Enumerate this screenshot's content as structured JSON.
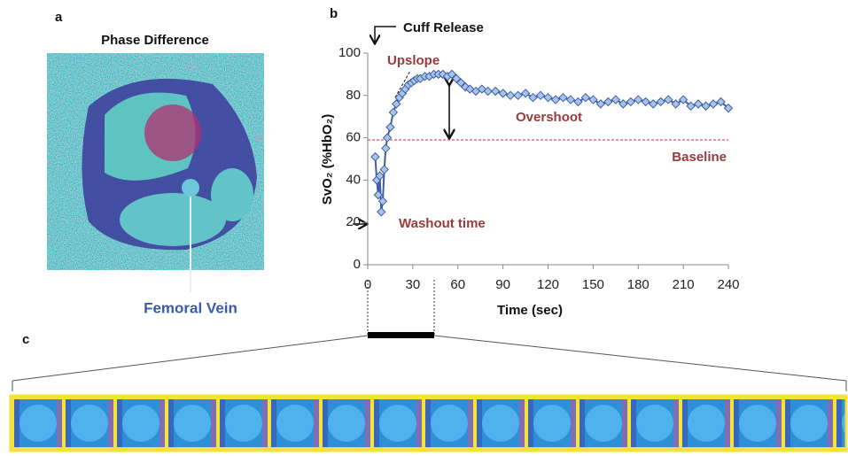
{
  "panel_labels": [
    "a",
    "b",
    "c"
  ],
  "image_title": "Phase Difference",
  "image_label": "Femoral Vein",
  "chart_data": {
    "type": "line",
    "xlabel": "Time (sec)",
    "ylabel": "SvO₂ (%HbO₂)",
    "x": [
      5,
      6,
      7,
      8,
      9,
      10,
      11,
      12,
      13,
      15,
      17,
      19,
      21,
      23,
      25,
      27,
      29,
      31,
      33,
      35,
      38,
      41,
      44,
      47,
      50,
      53,
      56,
      59,
      62,
      65,
      68,
      72,
      76,
      80,
      85,
      90,
      95,
      100,
      105,
      110,
      115,
      120,
      125,
      130,
      135,
      140,
      145,
      150,
      155,
      160,
      165,
      170,
      175,
      180,
      185,
      190,
      195,
      200,
      205,
      210,
      215,
      220,
      225,
      230,
      235,
      240
    ],
    "series": [
      {
        "color": "#3d5fa8",
        "marker_fill": "#a9c4e6",
        "values": [
          51,
          40,
          33,
          42,
          25,
          30,
          45,
          55,
          60,
          65,
          72,
          76,
          79,
          81,
          83,
          85,
          86,
          87,
          88,
          88,
          89,
          89,
          90,
          90,
          90,
          89,
          90,
          88,
          86,
          84,
          83,
          82,
          83,
          82,
          82,
          81,
          80,
          80,
          81,
          79,
          80,
          79,
          78,
          79,
          78,
          77,
          79,
          78,
          76,
          77,
          78,
          76,
          77,
          78,
          77,
          76,
          77,
          78,
          76,
          78,
          75,
          76,
          75,
          76,
          77,
          74
        ]
      }
    ],
    "xlim": [
      0,
      240
    ],
    "xticks": [
      0,
      30,
      60,
      90,
      120,
      150,
      180,
      210,
      240
    ],
    "ylim": [
      0,
      100
    ],
    "yticks": [
      0,
      20,
      40,
      60,
      80,
      100
    ],
    "baseline": {
      "value": 59,
      "label": "Baseline",
      "color": "#e05555"
    },
    "annotations": [
      "Cuff Release",
      "Upslope",
      "Overshoot",
      "Washout time"
    ]
  }
}
